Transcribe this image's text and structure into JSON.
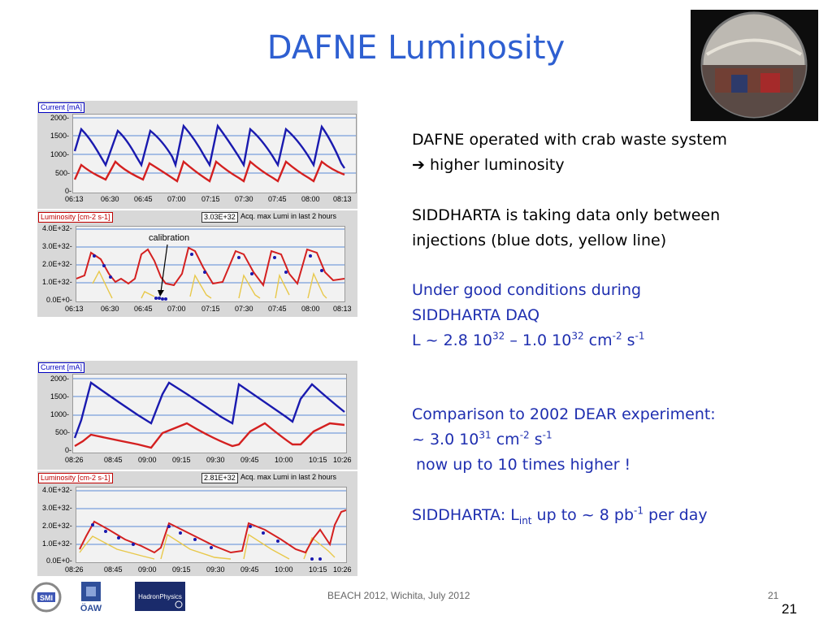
{
  "title": "DAFNE Luminosity",
  "plots": {
    "top_current_label": "Current [mA]",
    "top_current_yticks": [
      "2000-",
      "1500-",
      "1000-",
      "500-",
      "0-"
    ],
    "top_xticks": [
      "06:13",
      "06:30",
      "06:45",
      "07:00",
      "07:15",
      "07:30",
      "07:45",
      "08:00",
      "08:13"
    ],
    "top_lumi_label": "Luminosity [cm-2 s-1]",
    "top_lumi_max": "3.03E+32",
    "acq_label": "Acq. max Lumi in last 2 hours",
    "lumi_yticks": [
      "4.0E+32-",
      "3.0E+32-",
      "2.0E+32-",
      "1.0E+32-",
      "0.0E+0-"
    ],
    "calibration_label": "calibration",
    "bottom_current_label": "Current [mA]",
    "bottom_current_yticks": [
      "2000-",
      "1500-",
      "1000-",
      "500-",
      "0-"
    ],
    "bottom_xticks": [
      "08:26",
      "08:45",
      "09:00",
      "09:15",
      "09:30",
      "09:45",
      "10:00",
      "10:15",
      "10:26"
    ],
    "bottom_lumi_label": "Luminosity [cm-2 s-1]",
    "bottom_lumi_max": "2.81E+32"
  },
  "text": {
    "line1": "DAFNE operated with crab waste system",
    "line2": "higher luminosity",
    "line3": "SIDDHARTA is taking data only between",
    "line4": "injections (blue dots, yellow line)",
    "line5": "Under good conditions during",
    "line6": "SIDDHARTA DAQ",
    "line7a": "L ~ 2.8 10",
    "sup32a": "32",
    "line7b": " – 1.0 10",
    "sup32b": "32",
    "line7c": " cm",
    "supm2a": "-2",
    "line7d": " s",
    "supm1a": "-1",
    "line8": "Comparison to 2002 DEAR experiment:",
    "line9a": "~ 3.0 10",
    "sup31": "31",
    "line9b": " cm",
    "supm2b": "-2",
    "line9c": " s",
    "supm1b": "-1",
    "line10": "now up to 10 times higher !",
    "line11a": "SIDDHARTA: L",
    "subint": "int",
    "line11b": " up to ~ 8 pb",
    "supm1c": "-1",
    "line11c": " per day"
  },
  "footer": {
    "center": "BEACH 2012, Wichita, July 2012",
    "slide_small": "21",
    "slide_big": "21"
  },
  "logos": {
    "smi": "SMI",
    "oaw": "ÖAW",
    "hadron": "HadronPhysics"
  }
}
